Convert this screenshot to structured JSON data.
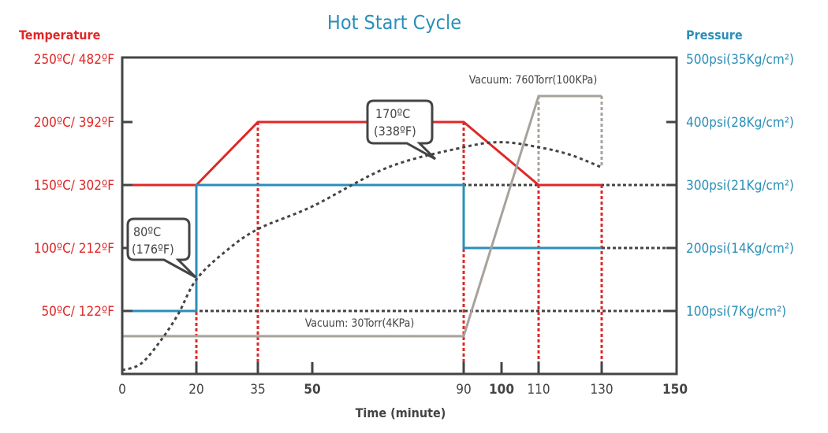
{
  "chart_data": {
    "type": "line",
    "title": "Hot Start Cycle",
    "xlabel": "Time (minute)",
    "ylabel_left": "Temperature",
    "ylabel_right": "Pressure",
    "xlim": [
      0,
      150
    ],
    "x_ticks": [
      {
        "value": 0,
        "label": "0",
        "bold": false
      },
      {
        "value": 20,
        "label": "20",
        "bold": false
      },
      {
        "value": 35,
        "label": "35",
        "bold": false
      },
      {
        "value": 50,
        "label": "50",
        "bold": true
      },
      {
        "value": 90,
        "label": "90",
        "bold": false
      },
      {
        "value": 100,
        "label": "100",
        "bold": true
      },
      {
        "value": 110,
        "label": "110",
        "bold": false
      },
      {
        "value": 130,
        "label": "130",
        "bold": false
      },
      {
        "value": 150,
        "label": "150",
        "bold": true
      }
    ],
    "left_ticks": [
      {
        "value": 250,
        "label": "250ºC/ 482ºF"
      },
      {
        "value": 200,
        "label": "200ºC/ 392ºF"
      },
      {
        "value": 150,
        "label": "150ºC/ 302ºF"
      },
      {
        "value": 100,
        "label": "100ºC/ 212ºF"
      },
      {
        "value": 50,
        "label": "50ºC/ 122ºF"
      }
    ],
    "right_ticks": [
      {
        "value": 500,
        "label": "500psi(35Kg/cm²)"
      },
      {
        "value": 400,
        "label": "400psi(28Kg/cm²)"
      },
      {
        "value": 300,
        "label": "300psi(21Kg/cm²)"
      },
      {
        "value": 200,
        "label": "200psi(14Kg/cm²)"
      },
      {
        "value": 100,
        "label": "100psi(7Kg/cm²)"
      }
    ],
    "series": [
      {
        "key": "temperature",
        "axis": "left",
        "color": "#e02727",
        "style": "solid",
        "x": [
          0,
          20,
          35,
          90,
          110,
          130
        ],
        "y": [
          150,
          150,
          200,
          200,
          150,
          150
        ]
      },
      {
        "key": "pressure",
        "axis": "right",
        "color": "#2a8fb8",
        "style": "solid",
        "x": [
          0,
          20,
          20,
          90,
          90,
          130
        ],
        "y": [
          100,
          100,
          300,
          300,
          200,
          200
        ]
      },
      {
        "key": "vacuum",
        "axis": "vacuum",
        "color": "#a8a29c",
        "style": "solid",
        "x": [
          0,
          90,
          110,
          130
        ],
        "y": [
          30,
          30,
          760,
          760
        ]
      },
      {
        "key": "product_temperature",
        "axis": "left",
        "color": "#444444",
        "style": "dotted",
        "x": [
          0,
          5,
          10,
          15,
          20,
          27,
          35,
          50,
          70,
          90,
          100,
          110,
          120,
          130
        ],
        "y": [
          3,
          8,
          25,
          47,
          75,
          97,
          115,
          133,
          164,
          180,
          184,
          180,
          174,
          164
        ]
      }
    ],
    "annotations": [
      {
        "text": "Vacuum: 760Torr(100KPa)"
      },
      {
        "text": "Vacuum: 30Torr(4KPa)"
      },
      {
        "text_line1": "170ºC",
        "text_line2": "(338ºF)"
      },
      {
        "text_line1": "80ºC",
        "text_line2": "(176ºF)"
      }
    ],
    "colors": {
      "temperature": "#e02727",
      "pressure": "#2a8fb8",
      "axis": "#444444",
      "vacuum": "#a8a29c"
    },
    "grid": false
  }
}
